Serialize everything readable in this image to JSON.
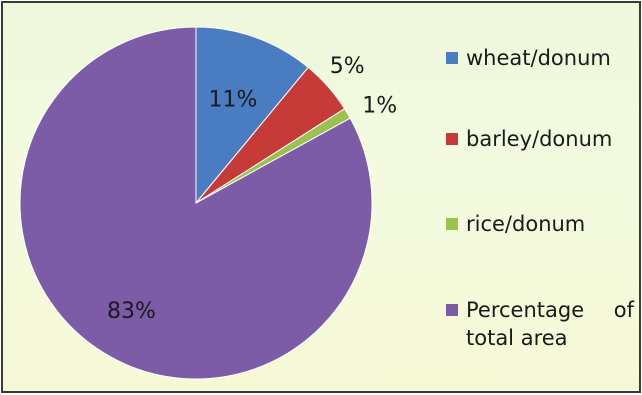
{
  "chart_data": {
    "type": "pie",
    "title": "",
    "categories": [
      "wheat/donum",
      "barley/donum",
      "rice/donum",
      "Percentage of total area"
    ],
    "values": [
      11,
      5,
      1,
      83
    ],
    "data_labels": [
      "11%",
      "5%",
      "1%",
      "83%"
    ],
    "colors": [
      "#4a7cc1",
      "#c63a37",
      "#9bc24f",
      "#7c5ba7"
    ],
    "legend_position": "right",
    "start_angle_deg": 0,
    "direction": "clockwise"
  }
}
